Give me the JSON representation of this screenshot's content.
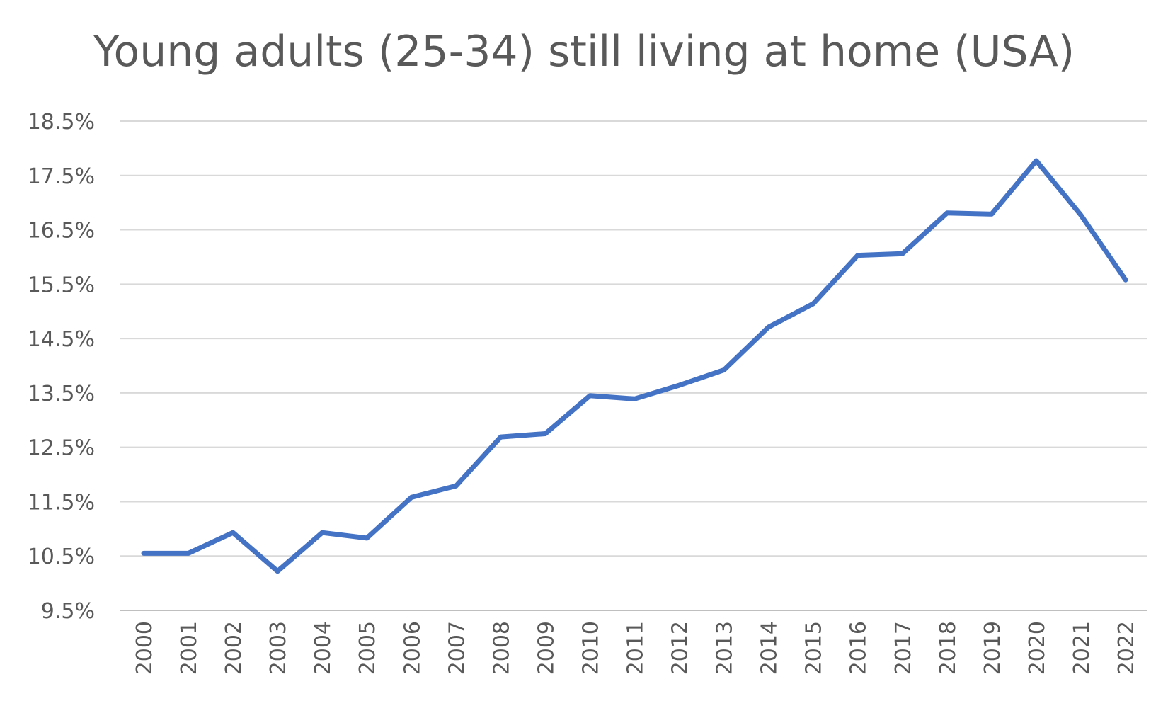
{
  "chart_data": {
    "type": "line",
    "title": "Young adults (25-34) still living at home (USA)",
    "xlabel": "",
    "ylabel": "",
    "categories": [
      "2000",
      "2001",
      "2002",
      "2003",
      "2004",
      "2005",
      "2006",
      "2007",
      "2008",
      "2009",
      "2010",
      "2011",
      "2012",
      "2013",
      "2014",
      "2015",
      "2016",
      "2017",
      "2018",
      "2019",
      "2020",
      "2021",
      "2022"
    ],
    "series": [
      {
        "color": "#4472c4",
        "values": [
          10.55,
          10.55,
          10.93,
          10.22,
          10.93,
          10.83,
          11.58,
          11.79,
          12.69,
          12.75,
          13.45,
          13.39,
          13.64,
          13.92,
          14.71,
          15.14,
          16.03,
          16.06,
          16.81,
          16.79,
          17.77,
          16.77,
          15.58
        ]
      }
    ],
    "ylim": [
      9.5,
      18.5
    ],
    "yticks": [
      9.5,
      10.5,
      11.5,
      12.5,
      13.5,
      14.5,
      15.5,
      16.5,
      17.5,
      18.5
    ],
    "ytick_labels": [
      "9.5%",
      "10.5%",
      "11.5%",
      "12.5%",
      "13.5%",
      "14.5%",
      "15.5%",
      "16.5%",
      "17.5%",
      "18.5%"
    ],
    "grid": true,
    "legend": "none",
    "colors": {
      "grid": "#d9d9d9",
      "text": "#595959",
      "series": "#4472c4"
    }
  }
}
